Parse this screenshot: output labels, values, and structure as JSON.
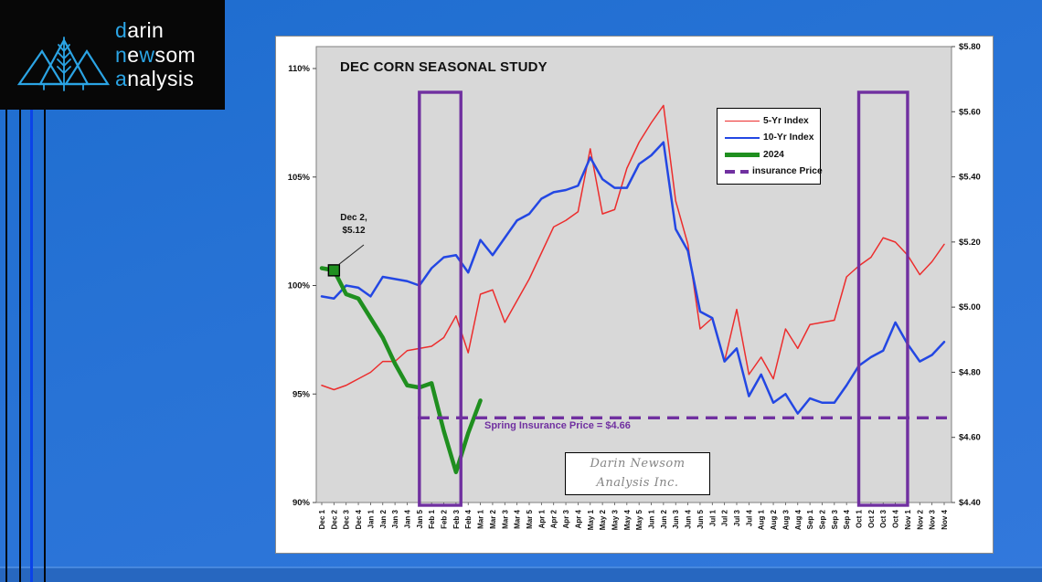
{
  "logo": {
    "w1a": "d",
    "w1b": "arin",
    "w2a": "n",
    "w2b": "e",
    "w2c": "w",
    "w2d": "som",
    "w3a": "a",
    "w3b": "nalysis"
  },
  "chart": {
    "title": "DEC CORN SEASONAL STUDY",
    "annotation": {
      "line1": "Dec 2,",
      "line2": "$5.12"
    },
    "insurance_label": "Spring Insurance Price = $4.66",
    "watermark": {
      "line1": "Darin Newsom",
      "line2": "Analysis Inc."
    }
  },
  "chart_data": {
    "type": "line",
    "title": "DEC CORN SEASONAL STUDY",
    "grid": false,
    "legend_position": "top-right",
    "categories": [
      "Dec 1",
      "Dec 2",
      "Dec 3",
      "Dec 4",
      "Jan 1",
      "Jan 2",
      "Jan 3",
      "Jan 4",
      "Jan 5",
      "Feb 1",
      "Feb 2",
      "Feb 3",
      "Feb 4",
      "Mar 1",
      "Mar 2",
      "Mar 3",
      "Mar 4",
      "Mar 5",
      "Apr 1",
      "Apr 2",
      "Apr 3",
      "Apr 4",
      "May 1",
      "May 2",
      "May 3",
      "May 4",
      "May 5",
      "Jun 1",
      "Jun 2",
      "Jun 3",
      "Jun 4",
      "Jun 5",
      "Jul 1",
      "Jul 2",
      "Jul 3",
      "Jul 4",
      "Aug 1",
      "Aug 2",
      "Aug 3",
      "Aug 4",
      "Sep 1",
      "Sep 2",
      "Sep 3",
      "Sep 4",
      "Oct 1",
      "Oct 2",
      "Oct 3",
      "Oct 4",
      "Nov 1",
      "Nov 2",
      "Nov 3",
      "Nov 4"
    ],
    "left_axis": {
      "unit": "percent",
      "ticks": [
        "110%",
        "105%",
        "100%",
        "95%",
        "90%"
      ],
      "tick_values": [
        110,
        105,
        100,
        95,
        90
      ],
      "min": 90,
      "max": 111
    },
    "right_axis": {
      "unit": "usd",
      "ticks": [
        "$5.80",
        "$5.60",
        "$5.40",
        "$5.20",
        "$5.00",
        "$4.80",
        "$4.60",
        "$4.40"
      ],
      "tick_values": [
        5.8,
        5.6,
        5.4,
        5.2,
        5.0,
        4.8,
        4.6,
        4.4
      ],
      "min": 4.4,
      "max": 5.8
    },
    "series": [
      {
        "name": "5-Yr Index",
        "color": "#ec2d2d",
        "width": 1.5,
        "values": [
          95.4,
          95.2,
          95.4,
          95.7,
          96.0,
          96.5,
          96.5,
          97.0,
          97.1,
          97.2,
          97.6,
          98.6,
          96.9,
          99.6,
          99.8,
          98.3,
          99.3,
          100.3,
          101.5,
          102.7,
          103.0,
          103.4,
          106.3,
          103.3,
          103.5,
          105.4,
          106.6,
          107.5,
          108.3,
          103.9,
          101.9,
          98.0,
          98.5,
          96.5,
          98.9,
          95.9,
          96.7,
          95.7,
          98.0,
          97.1,
          98.2,
          98.3,
          98.4,
          100.4,
          100.9,
          101.3,
          102.2,
          102.0,
          101.4,
          100.5,
          101.1,
          101.9
        ]
      },
      {
        "name": "10-Yr Index",
        "color": "#2347e3",
        "width": 2.5,
        "values": [
          99.5,
          99.4,
          100.0,
          99.9,
          99.5,
          100.4,
          100.3,
          100.2,
          100.0,
          100.8,
          101.3,
          101.4,
          100.6,
          102.1,
          101.4,
          102.2,
          103.0,
          103.3,
          104.0,
          104.3,
          104.4,
          104.6,
          105.9,
          104.9,
          104.5,
          104.5,
          105.6,
          106.0,
          106.6,
          102.6,
          101.6,
          98.8,
          98.5,
          96.5,
          97.1,
          94.9,
          95.9,
          94.6,
          95.0,
          94.1,
          94.8,
          94.6,
          94.6,
          95.4,
          96.3,
          96.7,
          97.0,
          98.3,
          97.3,
          96.5,
          96.8,
          97.4
        ]
      },
      {
        "name": "2024",
        "color": "#1f8f1f",
        "width": 4.5,
        "marker_index": 1,
        "values": [
          100.8,
          100.7,
          99.6,
          99.4,
          98.5,
          97.6,
          96.4,
          95.4,
          95.3,
          95.5,
          93.3,
          91.4,
          93.2,
          94.7,
          null,
          null,
          null,
          null,
          null,
          null,
          null,
          null,
          null,
          null,
          null,
          null,
          null,
          null,
          null,
          null,
          null,
          null,
          null,
          null,
          null,
          null,
          null,
          null,
          null,
          null,
          null,
          null,
          null,
          null,
          null,
          null,
          null,
          null,
          null,
          null,
          null,
          null
        ]
      }
    ],
    "hline": {
      "name": "insurance Price",
      "value_usd": 4.66,
      "color": "#7030a0",
      "style": "dashed",
      "label": "Spring Insurance Price = $4.66"
    },
    "highlight_boxes": [
      {
        "from_idx": 8,
        "to_idx": 11.4,
        "color": "#7030a0"
      },
      {
        "from_idx": 44,
        "to_idx": 48,
        "color": "#7030a0"
      }
    ],
    "annotation": {
      "text": "Dec 2, $5.12",
      "series": "2024",
      "index": 1,
      "value_usd": 5.12
    }
  }
}
